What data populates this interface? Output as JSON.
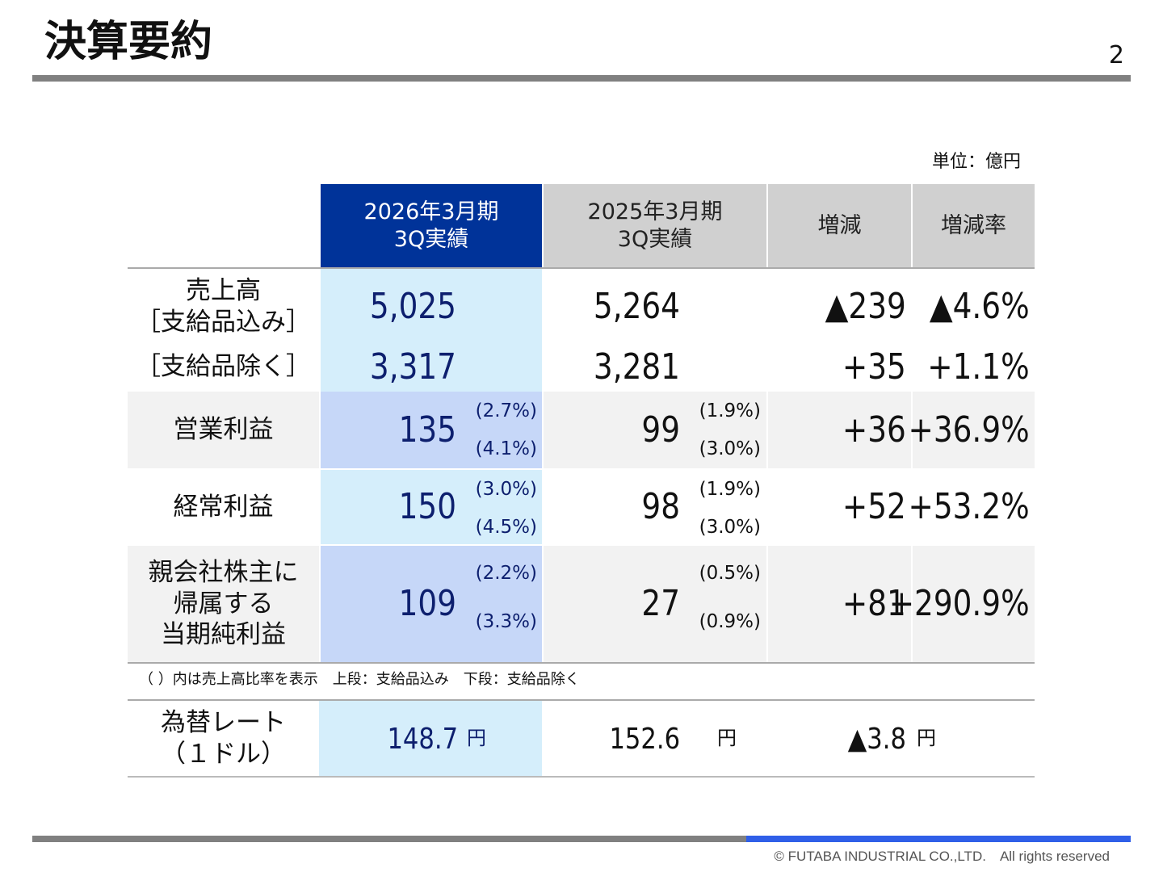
{
  "header": {
    "title": "決算要約",
    "page_number": "2"
  },
  "unit": "単位：億円",
  "table": {
    "headers": [
      [
        "2026年3月期",
        "3Q実績"
      ],
      [
        "2025年3月期",
        "3Q実績"
      ],
      [
        "増減"
      ],
      [
        "増減率"
      ]
    ],
    "rows": [
      {
        "label": [
          "売上高",
          "［支給品込み］"
        ],
        "current": "5,025",
        "previous": "5,264",
        "change": "▲239",
        "rate": "▲4.6%"
      },
      {
        "label": [
          "［支給品除く］"
        ],
        "current": "3,317",
        "previous": "3,281",
        "change": "+35",
        "rate": "+1.1%"
      },
      {
        "label": [
          "営業利益"
        ],
        "current": "135",
        "current_ratios": [
          "(2.7%)",
          "(4.1%)"
        ],
        "previous": "99",
        "previous_ratios": [
          "(1.9%)",
          "(3.0%)"
        ],
        "change": "+36",
        "rate": "+36.9%"
      },
      {
        "label": [
          "経常利益"
        ],
        "current": "150",
        "current_ratios": [
          "(3.0%)",
          "(4.5%)"
        ],
        "previous": "98",
        "previous_ratios": [
          "(1.9%)",
          "(3.0%)"
        ],
        "change": "+52",
        "rate": "+53.2%"
      },
      {
        "label": [
          "親会社株主に",
          "帰属する",
          "当期純利益"
        ],
        "current": "109",
        "current_ratios": [
          "(2.2%)",
          "(3.3%)"
        ],
        "previous": "27",
        "previous_ratios": [
          "(0.5%)",
          "(0.9%)"
        ],
        "change": "+81",
        "rate": "+290.9%"
      }
    ]
  },
  "note": "（ ）内は売上高比率を表示　上段：支給品込み　下段：支給品除く",
  "fx": {
    "label": [
      "為替レート",
      "（１ドル）"
    ],
    "current": "148.7",
    "previous": "152.6",
    "change": "▲3.8",
    "unit": "円"
  },
  "footer": "© FUTABA INDUSTRIAL CO.,LTD.　All rights reserved"
}
